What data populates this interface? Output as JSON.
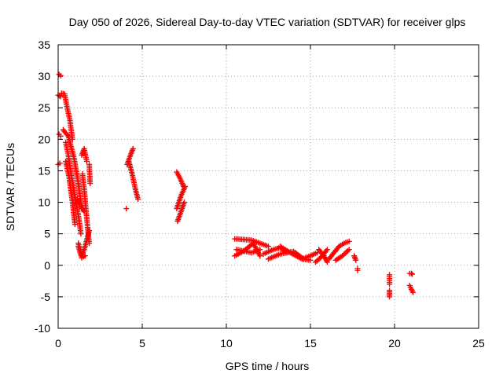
{
  "chart_data": {
    "type": "scatter",
    "title": "Day 050 of 2026, Sidereal Day-to-day VTEC variation (SDTVAR) for receiver glps",
    "xlabel": "GPS time / hours",
    "ylabel": "SDTVAR / TECUs",
    "xlim": [
      0,
      25
    ],
    "ylim": [
      -10,
      35
    ],
    "xticks": [
      0,
      5,
      10,
      15,
      20,
      25
    ],
    "yticks": [
      -10,
      -5,
      0,
      5,
      10,
      15,
      20,
      25,
      30,
      35
    ],
    "grid": true,
    "legend": "none",
    "marker": "+",
    "colors": {
      "series": "#ff0000",
      "grid": "#a0a0a0",
      "axis": "#000000"
    },
    "segments": [
      {
        "x": [
          0.0,
          0.1
        ],
        "y": [
          16.0,
          16.2
        ]
      },
      {
        "x": [
          0.05,
          0.15
        ],
        "y": [
          20.8,
          20.5
        ]
      },
      {
        "x": [
          0.0,
          0.15
        ],
        "y": [
          27.0,
          26.8
        ]
      },
      {
        "x": [
          0.05,
          0.15
        ],
        "y": [
          30.3,
          30.1
        ]
      },
      {
        "x": [
          0.2,
          0.38,
          0.5,
          0.7,
          0.85
        ],
        "y": [
          27.3,
          27.2,
          25.5,
          23.0,
          20.0
        ]
      },
      {
        "x": [
          0.3,
          0.6,
          0.95,
          1.2,
          1.4
        ],
        "y": [
          21.5,
          20.5,
          17.0,
          13.0,
          9.0
        ]
      },
      {
        "x": [
          0.45,
          0.6,
          0.8,
          1.0,
          1.2,
          1.35
        ],
        "y": [
          19.5,
          17.5,
          14.0,
          11.0,
          8.0,
          5.0
        ]
      },
      {
        "x": [
          0.45,
          0.65,
          0.85,
          1.0
        ],
        "y": [
          16.5,
          14.0,
          10.0,
          6.5
        ]
      },
      {
        "x": [
          1.15,
          1.35,
          1.55
        ],
        "y": [
          10.5,
          9.5,
          8.5
        ]
      },
      {
        "x": [
          1.2,
          1.4,
          1.55,
          1.7,
          1.85
        ],
        "y": [
          3.5,
          1.5,
          2.5,
          4.0,
          5.5
        ]
      },
      {
        "x": [
          1.2,
          1.4,
          1.6
        ],
        "y": [
          3.0,
          1.2,
          1.5
        ]
      },
      {
        "x": [
          1.4,
          1.55,
          1.7
        ],
        "y": [
          17.5,
          18.5,
          16.5
        ]
      },
      {
        "x": [
          1.45,
          1.55,
          1.65,
          1.75,
          1.85
        ],
        "y": [
          14.5,
          12.0,
          9.0,
          6.0,
          3.5
        ]
      },
      {
        "x": [
          1.85,
          1.9
        ],
        "y": [
          16.0,
          13.0
        ]
      },
      {
        "x": [
          4.05
        ],
        "y": [
          9.0
        ]
      },
      {
        "x": [
          4.1,
          4.3,
          4.45
        ],
        "y": [
          16.0,
          17.5,
          18.5
        ]
      },
      {
        "x": [
          4.2,
          4.4,
          4.6,
          4.75
        ],
        "y": [
          16.5,
          14.5,
          12.0,
          10.5
        ]
      },
      {
        "x": [
          7.05,
          7.25,
          7.45
        ],
        "y": [
          14.8,
          13.8,
          12.5
        ]
      },
      {
        "x": [
          7.05,
          7.3,
          7.55
        ],
        "y": [
          9.0,
          11.0,
          12.5
        ]
      },
      {
        "x": [
          7.1,
          7.3,
          7.5
        ],
        "y": [
          7.0,
          8.5,
          10.0
        ]
      },
      {
        "x": [
          10.5,
          11.5,
          12.5
        ],
        "y": [
          4.2,
          4.0,
          3.0
        ]
      },
      {
        "x": [
          10.6,
          11.5,
          12.0
        ],
        "y": [
          2.5,
          2.0,
          2.5
        ]
      },
      {
        "x": [
          10.5,
          11.0,
          11.6,
          12.0
        ],
        "y": [
          1.5,
          2.2,
          3.5,
          1.5
        ]
      },
      {
        "x": [
          12.2,
          12.8,
          13.2,
          13.6
        ],
        "y": [
          1.8,
          2.5,
          2.8,
          2.0
        ]
      },
      {
        "x": [
          12.5,
          13.2,
          14.0,
          14.6
        ],
        "y": [
          1.0,
          1.8,
          2.2,
          1.0
        ]
      },
      {
        "x": [
          13.2,
          13.8,
          14.5,
          15.0
        ],
        "y": [
          3.0,
          2.0,
          1.0,
          0.8
        ]
      },
      {
        "x": [
          14.5,
          15.0,
          15.4
        ],
        "y": [
          1.0,
          1.5,
          2.0
        ]
      },
      {
        "x": [
          15.5,
          15.8,
          16.0
        ],
        "y": [
          2.5,
          1.5,
          0.5
        ]
      },
      {
        "x": [
          15.3,
          15.6,
          16.0
        ],
        "y": [
          0.5,
          1.2,
          2.5
        ]
      },
      {
        "x": [
          16.1,
          16.4,
          16.7,
          17.0,
          17.3
        ],
        "y": [
          1.0,
          2.0,
          3.0,
          3.5,
          3.8
        ]
      },
      {
        "x": [
          16.5,
          16.9,
          17.3
        ],
        "y": [
          0.8,
          1.5,
          2.5
        ]
      },
      {
        "x": [
          17.6,
          17.7
        ],
        "y": [
          1.5,
          0.8
        ]
      },
      {
        "x": [
          17.8,
          17.8
        ],
        "y": [
          -0.5,
          -0.8
        ]
      },
      {
        "x": [
          19.7,
          19.7
        ],
        "y": [
          -1.5,
          -3.0
        ]
      },
      {
        "x": [
          19.7,
          19.7
        ],
        "y": [
          -4.0,
          -5.0
        ]
      },
      {
        "x": [
          20.9,
          21.0,
          21.05
        ],
        "y": [
          -1.3,
          -1.3,
          -1.4
        ]
      },
      {
        "x": [
          20.9,
          21.0,
          21.1
        ],
        "y": [
          -3.2,
          -3.8,
          -4.3
        ]
      }
    ]
  }
}
